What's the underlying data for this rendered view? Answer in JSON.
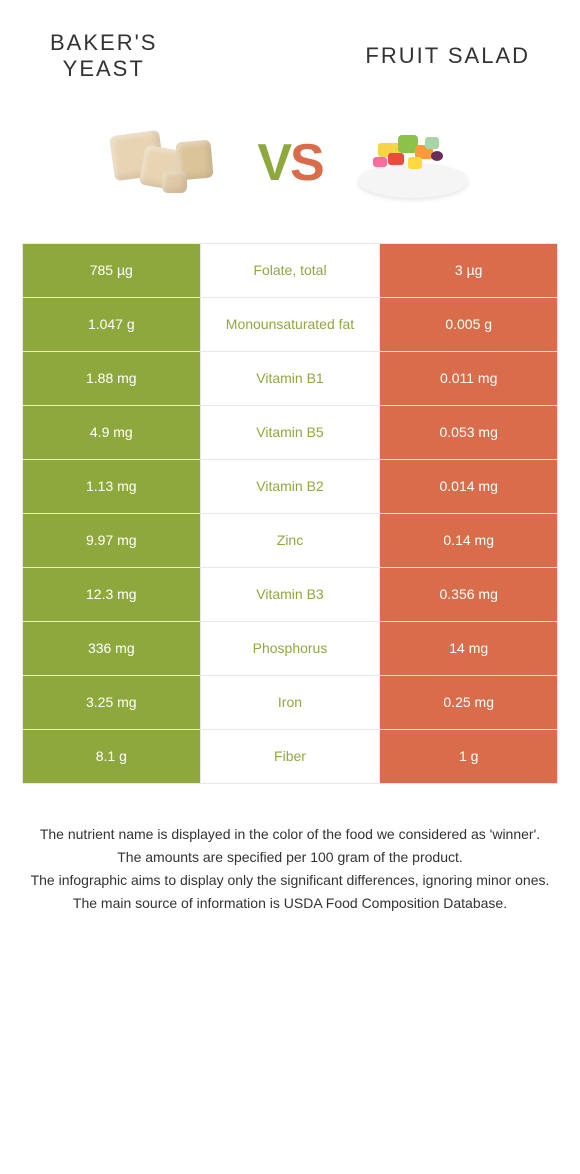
{
  "colors": {
    "left": "#8fa83e",
    "right": "#d96c4a",
    "row_border": "#e8e8e8",
    "text": "#333333",
    "white": "#ffffff"
  },
  "header": {
    "left_title": "BAKER'S\nYEAST",
    "right_title": "FRUIT SALAD"
  },
  "vs": {
    "v": "V",
    "s": "S"
  },
  "rows": [
    {
      "left": "785 µg",
      "label": "Folate, total",
      "right": "3 µg",
      "winner": "left"
    },
    {
      "left": "1.047 g",
      "label": "Monounsaturated fat",
      "right": "0.005 g",
      "winner": "left"
    },
    {
      "left": "1.88 mg",
      "label": "Vitamin B1",
      "right": "0.011 mg",
      "winner": "left"
    },
    {
      "left": "4.9 mg",
      "label": "Vitamin B5",
      "right": "0.053 mg",
      "winner": "left"
    },
    {
      "left": "1.13 mg",
      "label": "Vitamin B2",
      "right": "0.014 mg",
      "winner": "left"
    },
    {
      "left": "9.97 mg",
      "label": "Zinc",
      "right": "0.14 mg",
      "winner": "left"
    },
    {
      "left": "12.3 mg",
      "label": "Vitamin B3",
      "right": "0.356 mg",
      "winner": "left"
    },
    {
      "left": "336 mg",
      "label": "Phosphorus",
      "right": "14 mg",
      "winner": "left"
    },
    {
      "left": "3.25 mg",
      "label": "Iron",
      "right": "0.25 mg",
      "winner": "left"
    },
    {
      "left": "8.1 g",
      "label": "Fiber",
      "right": "1 g",
      "winner": "left"
    }
  ],
  "footer": {
    "line1": "The nutrient name is displayed in the color of the food we considered as 'winner'.",
    "line2": "The amounts are specified per 100 gram of the product.",
    "line3": "The infographic aims to display only the significant differences, ignoring minor ones.",
    "line4": "The main source of information is USDA Food Composition Database."
  }
}
